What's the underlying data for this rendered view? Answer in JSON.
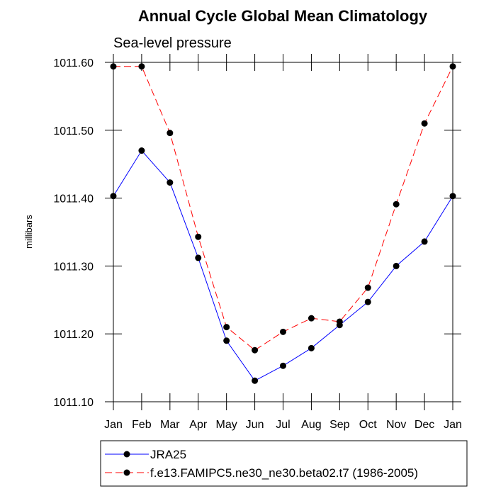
{
  "chart_data": {
    "type": "line",
    "title": "Annual Cycle Global Mean Climatology",
    "subtitle": "Sea-level pressure",
    "xlabel": "",
    "ylabel": "millibars",
    "categories": [
      "Jan",
      "Feb",
      "Mar",
      "Apr",
      "May",
      "Jun",
      "Jul",
      "Aug",
      "Sep",
      "Oct",
      "Nov",
      "Dec",
      "Jan"
    ],
    "ylim": [
      1011.1,
      1011.6
    ],
    "yticks": [
      1011.1,
      1011.2,
      1011.3,
      1011.4,
      1011.5,
      1011.6
    ],
    "ytick_labels": [
      "1011.10",
      "1011.20",
      "1011.30",
      "1011.40",
      "1011.50",
      "1011.60"
    ],
    "series": [
      {
        "name": "JRA25",
        "color": "#0000ff",
        "dash": "solid",
        "values": [
          1011.403,
          1011.47,
          1011.423,
          1011.312,
          1011.19,
          1011.131,
          1011.153,
          1011.179,
          1011.213,
          1011.247,
          1011.3,
          1011.336,
          1011.403
        ]
      },
      {
        "name": "f.e13.FAMIPC5.ne30_ne30.beta02.t7 (1986-2005)",
        "color": "#ff0000",
        "dash": "dashed",
        "values": [
          1011.594,
          1011.594,
          1011.496,
          1011.343,
          1011.21,
          1011.176,
          1011.203,
          1011.223,
          1011.218,
          1011.268,
          1011.391,
          1011.51,
          1011.594
        ]
      }
    ],
    "grid": false,
    "legend_position": "bottom-left"
  }
}
